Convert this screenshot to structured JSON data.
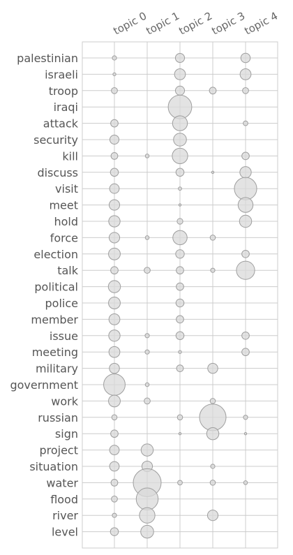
{
  "chart_data": {
    "type": "bubble-matrix",
    "columns": [
      "topic 0",
      "topic 1",
      "topic 2",
      "topic 3",
      "topic 4"
    ],
    "rows": [
      "palestinian",
      "israeli",
      "troop",
      "iraqi",
      "attack",
      "security",
      "kill",
      "discuss",
      "visit",
      "meet",
      "hold",
      "force",
      "election",
      "talk",
      "political",
      "police",
      "member",
      "issue",
      "meeting",
      "military",
      "government",
      "work",
      "russian",
      "sign",
      "project",
      "situation",
      "water",
      "flood",
      "river",
      "level"
    ],
    "values": [
      [
        0.01,
        0.0,
        0.045,
        0.0,
        0.048
      ],
      [
        0.005,
        0.0,
        0.065,
        0.0,
        0.065
      ],
      [
        0.02,
        0.0,
        0.045,
        0.025,
        0.02
      ],
      [
        0.0,
        0.0,
        0.3,
        0.0,
        0.0
      ],
      [
        0.03,
        0.0,
        0.12,
        0.0,
        0.012
      ],
      [
        0.045,
        0.0,
        0.09,
        0.0,
        0.0
      ],
      [
        0.025,
        0.008,
        0.13,
        0.0,
        0.03
      ],
      [
        0.035,
        0.0,
        0.035,
        0.003,
        0.07
      ],
      [
        0.05,
        0.0,
        0.006,
        0.0,
        0.27
      ],
      [
        0.06,
        0.0,
        0.003,
        0.0,
        0.12
      ],
      [
        0.07,
        0.0,
        0.018,
        0.0,
        0.08
      ],
      [
        0.06,
        0.008,
        0.11,
        0.015,
        0.0
      ],
      [
        0.075,
        0.0,
        0.04,
        0.0,
        0.03
      ],
      [
        0.03,
        0.02,
        0.03,
        0.01,
        0.18
      ],
      [
        0.08,
        0.0,
        0.03,
        0.0,
        0.0
      ],
      [
        0.075,
        0.0,
        0.035,
        0.0,
        0.0
      ],
      [
        0.065,
        0.0,
        0.03,
        0.0,
        0.0
      ],
      [
        0.07,
        0.01,
        0.035,
        0.0,
        0.03
      ],
      [
        0.065,
        0.01,
        0.005,
        0.0,
        0.03
      ],
      [
        0.055,
        0.0,
        0.025,
        0.055,
        0.0
      ],
      [
        0.25,
        0.008,
        0.0,
        0.0,
        0.0
      ],
      [
        0.075,
        0.02,
        0.0,
        0.015,
        0.0
      ],
      [
        0.015,
        0.0,
        0.015,
        0.38,
        0.01
      ],
      [
        0.03,
        0.0,
        0.003,
        0.08,
        0.003
      ],
      [
        0.05,
        0.08,
        0.0,
        0.0,
        0.0
      ],
      [
        0.05,
        0.06,
        0.0,
        0.01,
        0.0
      ],
      [
        0.025,
        0.42,
        0.012,
        0.015,
        0.008
      ],
      [
        0.02,
        0.26,
        0.0,
        0.0,
        0.0
      ],
      [
        0.01,
        0.13,
        0.0,
        0.06,
        0.0
      ],
      [
        0.035,
        0.09,
        0.0,
        0.0,
        0.0
      ]
    ],
    "grid": true
  }
}
